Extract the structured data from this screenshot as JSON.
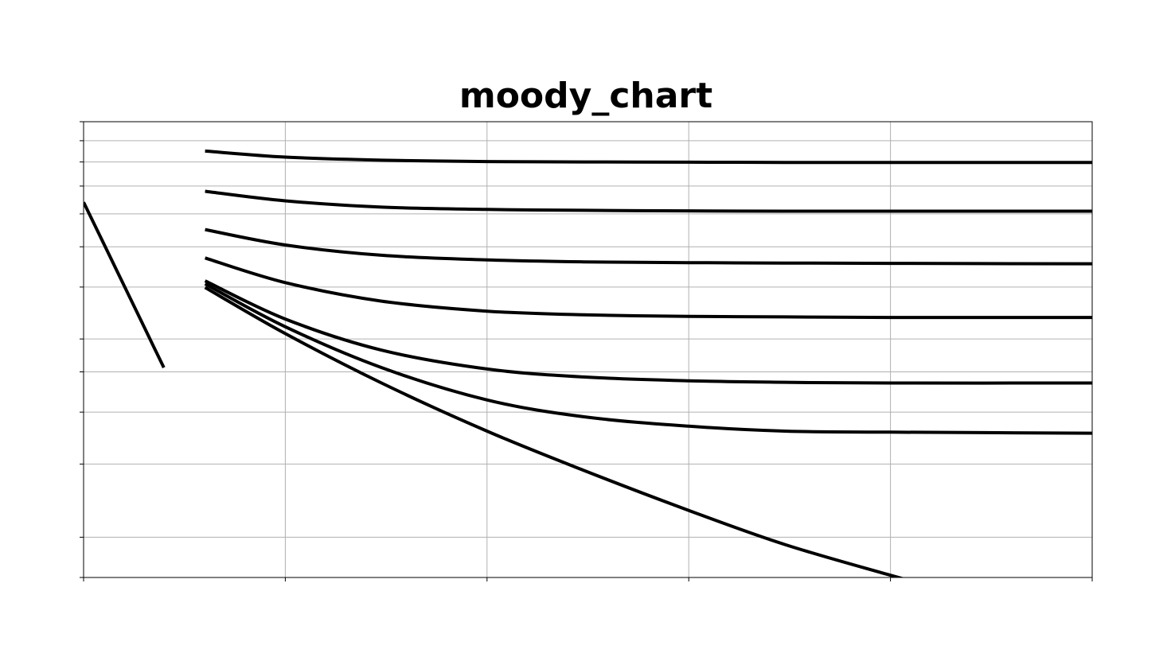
{
  "chart_data": {
    "type": "line",
    "title": "moody_chart",
    "xlabel": "",
    "ylabel": "",
    "x_scale": "log",
    "y_scale": "log",
    "xlim": [
      1000,
      100000000
    ],
    "ylim": [
      0.008,
      0.1
    ],
    "x_grid": [
      1000,
      10000,
      100000,
      1000000,
      10000000,
      100000000
    ],
    "y_grid": [
      0.008,
      0.01,
      0.015,
      0.02,
      0.025,
      0.03,
      0.04,
      0.05,
      0.06,
      0.07,
      0.08,
      0.09,
      0.1
    ],
    "grid": true,
    "line_color": "#000000",
    "series": [
      {
        "x": [
          1000,
          1500,
          2000,
          2300,
          2500
        ],
        "y": [
          0.064,
          0.0427,
          0.032,
          0.0278,
          0.0256
        ]
      },
      {
        "x": [
          4000,
          10000,
          30000,
          100000,
          300000,
          1000000,
          3000000,
          10000000,
          30000000
        ],
        "y": [
          0.0399,
          0.0309,
          0.0235,
          0.018,
          0.0145,
          0.0116,
          0.0096,
          0.0081,
          0.007
        ]
      },
      {
        "x": [
          4000,
          10000,
          30000,
          100000,
          300000,
          1000000,
          3000000,
          10000000,
          100000000
        ],
        "y": [
          0.0407,
          0.0321,
          0.0256,
          0.0214,
          0.0195,
          0.0185,
          0.018,
          0.0179,
          0.0178
        ]
      },
      {
        "x": [
          4000,
          10000,
          30000,
          100000,
          300000,
          1000000,
          3000000,
          10000000,
          100000000
        ],
        "y": [
          0.0414,
          0.0335,
          0.0282,
          0.0254,
          0.0243,
          0.0238,
          0.0236,
          0.0235,
          0.0235
        ]
      },
      {
        "x": [
          4000,
          10000,
          30000,
          100000,
          300000,
          1000000,
          3000000,
          10000000,
          100000000
        ],
        "y": [
          0.047,
          0.041,
          0.037,
          0.035,
          0.0343,
          0.034,
          0.0339,
          0.0338,
          0.0338
        ]
      },
      {
        "x": [
          4000,
          10000,
          30000,
          100000,
          300000,
          1000000,
          3000000,
          10000000,
          100000000
        ],
        "y": [
          0.055,
          0.0505,
          0.0477,
          0.0465,
          0.046,
          0.0458,
          0.0457,
          0.0456,
          0.0455
        ]
      },
      {
        "x": [
          4000,
          10000,
          30000,
          100000,
          300000,
          1000000,
          3000000,
          10000000,
          100000000
        ],
        "y": [
          0.068,
          0.0645,
          0.0623,
          0.0615,
          0.0612,
          0.061,
          0.0609,
          0.0609,
          0.0609
        ]
      },
      {
        "x": [
          4000,
          10000,
          30000,
          100000,
          300000,
          1000000,
          3000000,
          10000000,
          100000000
        ],
        "y": [
          0.085,
          0.0822,
          0.0808,
          0.0802,
          0.08,
          0.0799,
          0.0798,
          0.0798,
          0.0798
        ]
      }
    ]
  }
}
